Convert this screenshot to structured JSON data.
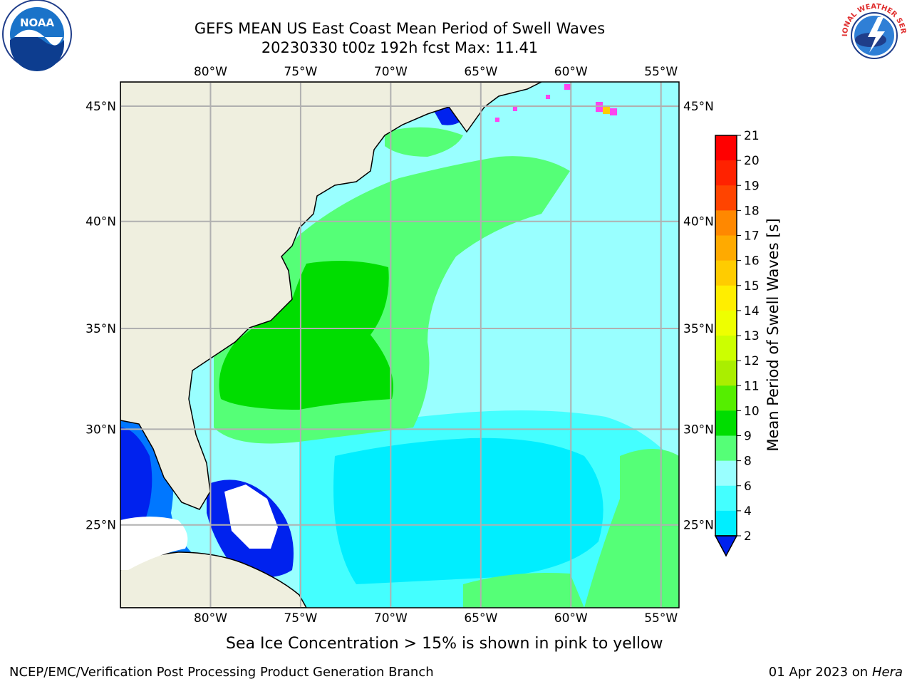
{
  "title": {
    "line1": "GEFS MEAN US East Coast Mean Period of Swell Waves",
    "line2": "20230330 t00z 192h fcst   Max: 11.41"
  },
  "map": {
    "lon_range": [
      -85,
      -54
    ],
    "lat_range": [
      20.5,
      46
    ],
    "lon_ticks": [
      "80°W",
      "75°W",
      "70°W",
      "65°W",
      "60°W",
      "55°W"
    ],
    "lat_ticks": [
      "45°N",
      "40°N",
      "35°N",
      "30°N",
      "25°N"
    ],
    "grid": true,
    "colors": {
      "land": "#efefdf",
      "coast": "#000000",
      "grid": "#b0b0b0"
    }
  },
  "colorbar": {
    "label": "Mean Period of Swell Waves [s]",
    "ticks": [
      "2",
      "4",
      "6",
      "8",
      "9",
      "10",
      "11",
      "12",
      "13",
      "14",
      "15",
      "16",
      "17",
      "18",
      "19",
      "20",
      "21"
    ],
    "colors": [
      "#0022ee",
      "#0077ff",
      "#00eeff",
      "#44ffff",
      "#99ffff",
      "#55ff77",
      "#00dd00",
      "#55ee00",
      "#aaee00",
      "#ccff00",
      "#eeff00",
      "#ffee00",
      "#ffcc00",
      "#ffaa00",
      "#ff8800",
      "#ff4400",
      "#ff2200",
      "#ff0000"
    ]
  },
  "note": "Sea Ice Concentration > 15% is shown in pink to yellow",
  "footer": {
    "left": "NCEP/EMC/Verification Post Processing Product Generation Branch",
    "date": "01 Apr 2023 on ",
    "machine": "Hera"
  },
  "logos": {
    "left": "NOAA",
    "right": "NATIONAL WEATHER SERVICE"
  }
}
